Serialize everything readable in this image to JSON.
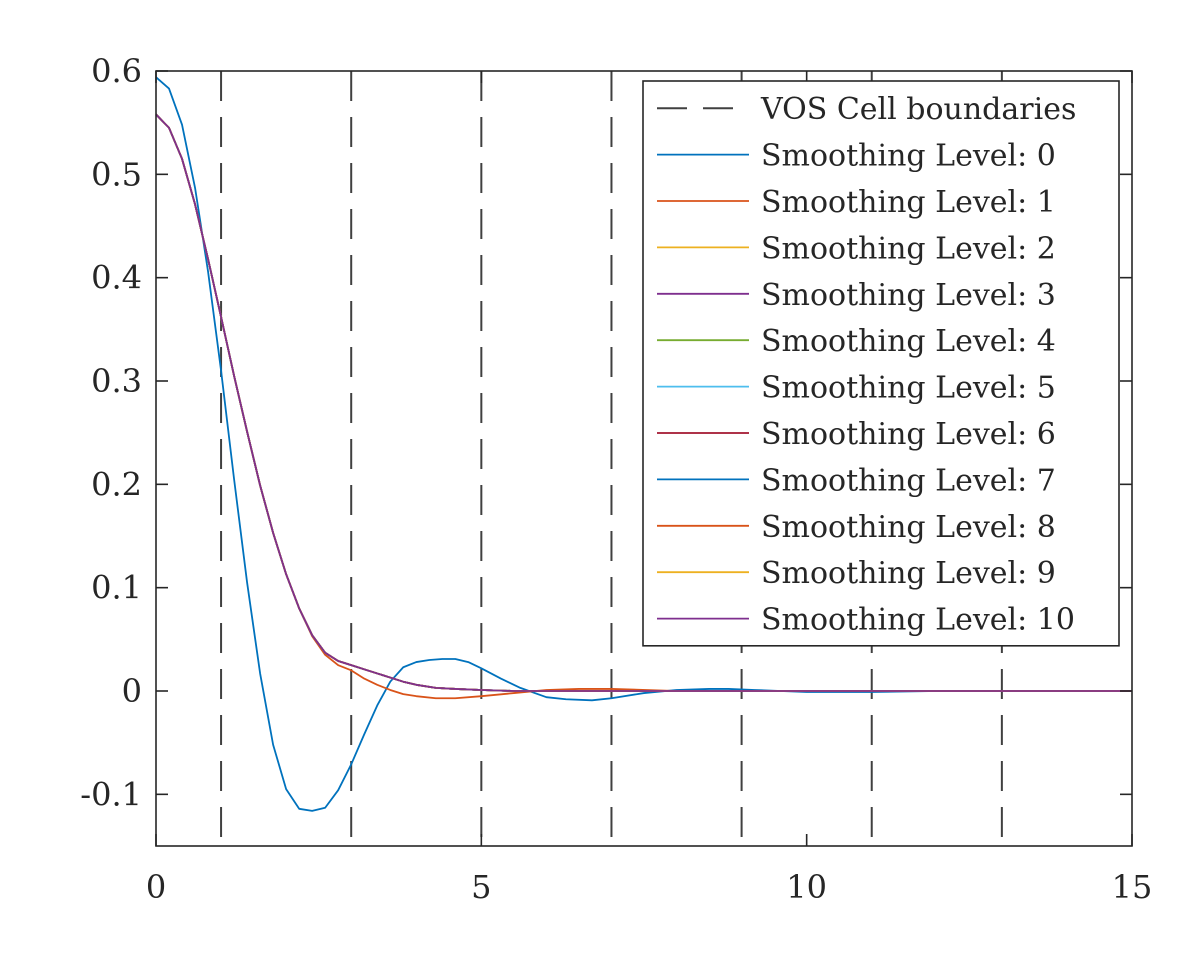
{
  "chart_data": {
    "type": "line",
    "title": "",
    "xlabel": "",
    "ylabel": "",
    "xlim": [
      0,
      15
    ],
    "ylim": [
      -0.15,
      0.6
    ],
    "xticks": [
      0,
      5,
      10,
      15
    ],
    "xtick_labels": [
      "0",
      "5",
      "10",
      "15"
    ],
    "yticks": [
      -0.1,
      0,
      0.1,
      0.2,
      0.3,
      0.4,
      0.5,
      0.6
    ],
    "ytick_labels": [
      "-0.1",
      "0",
      "0.1",
      "0.2",
      "0.3",
      "0.4",
      "0.5",
      "0.6"
    ],
    "grid": false,
    "legend_position": "top-right",
    "vertical_lines": {
      "name": "VOS Cell boundaries",
      "style": "dashed",
      "color": "#404040",
      "x": [
        1,
        3,
        5,
        7,
        9,
        11,
        13
      ]
    },
    "series": [
      {
        "name": "Smoothing Level: 0",
        "color": "#0072BD",
        "x": [
          0,
          0.2,
          0.4,
          0.6,
          0.8,
          1.0,
          1.2,
          1.4,
          1.6,
          1.8,
          2.0,
          2.2,
          2.4,
          2.6,
          2.8,
          3.0,
          3.2,
          3.4,
          3.6,
          3.8,
          4.0,
          4.2,
          4.4,
          4.6,
          4.8,
          5.0,
          5.3,
          5.6,
          6.0,
          6.3,
          6.7,
          7.0,
          7.5,
          8.0,
          8.5,
          8.8,
          9.2,
          9.6,
          10.0,
          11.0,
          12.0,
          13.0,
          14.0,
          15.0
        ],
        "y": [
          0.594,
          0.583,
          0.548,
          0.487,
          0.406,
          0.31,
          0.205,
          0.105,
          0.017,
          -0.052,
          -0.095,
          -0.114,
          -0.116,
          -0.113,
          -0.096,
          -0.071,
          -0.042,
          -0.014,
          0.009,
          0.023,
          0.028,
          0.03,
          0.031,
          0.031,
          0.028,
          0.022,
          0.012,
          0.003,
          -0.006,
          -0.008,
          -0.009,
          -0.007,
          -0.002,
          0.001,
          0.002,
          0.002,
          0.001,
          0.0,
          -0.001,
          -0.001,
          0.0,
          0.0,
          0.0,
          0.0
        ]
      },
      {
        "name": "Smoothing Level: 1",
        "color": "#D95319",
        "x": [
          0,
          0.2,
          0.4,
          0.6,
          0.8,
          1.0,
          1.2,
          1.4,
          1.6,
          1.8,
          2.0,
          2.2,
          2.4,
          2.6,
          2.8,
          3.0,
          3.2,
          3.4,
          3.6,
          3.8,
          4.0,
          4.3,
          4.6,
          5.0,
          5.5,
          6.0,
          6.5,
          7.0,
          8.0,
          9.0,
          10.0,
          12.0,
          15.0
        ],
        "y": [
          0.558,
          0.545,
          0.515,
          0.471,
          0.418,
          0.362,
          0.305,
          0.251,
          0.199,
          0.153,
          0.113,
          0.08,
          0.053,
          0.035,
          0.025,
          0.02,
          0.012,
          0.006,
          0.001,
          -0.003,
          -0.005,
          -0.007,
          -0.007,
          -0.005,
          -0.002,
          0.001,
          0.002,
          0.002,
          0.0,
          0.0,
          0.0,
          0.0,
          0.0
        ]
      },
      {
        "name": "Smoothing Level: 2",
        "color": "#EDB120",
        "x": [
          0,
          0.2,
          0.4,
          0.6,
          0.8,
          1.0,
          1.2,
          1.4,
          1.6,
          1.8,
          2.0,
          2.2,
          2.4,
          2.6,
          2.8,
          3.0,
          3.2,
          3.4,
          3.6,
          3.8,
          4.0,
          4.3,
          4.6,
          5.0,
          5.5,
          6.0,
          7.0,
          8.0,
          10.0,
          12.0,
          15.0
        ],
        "y": [
          0.558,
          0.545,
          0.515,
          0.471,
          0.418,
          0.362,
          0.305,
          0.251,
          0.199,
          0.153,
          0.113,
          0.08,
          0.054,
          0.037,
          0.029,
          0.025,
          0.021,
          0.017,
          0.013,
          0.009,
          0.006,
          0.003,
          0.002,
          0.001,
          0.0,
          0.0,
          0.0,
          0.0,
          0.0,
          0.0,
          0.0
        ]
      },
      {
        "name": "Smoothing Level: 3",
        "color": "#7E2F8E",
        "x": [
          0,
          0.2,
          0.4,
          0.6,
          0.8,
          1.0,
          1.2,
          1.4,
          1.6,
          1.8,
          2.0,
          2.2,
          2.4,
          2.6,
          2.8,
          3.0,
          3.2,
          3.4,
          3.6,
          3.8,
          4.0,
          4.3,
          4.6,
          5.0,
          5.5,
          6.0,
          7.0,
          8.0,
          10.0,
          12.0,
          15.0
        ],
        "y": [
          0.558,
          0.545,
          0.515,
          0.471,
          0.418,
          0.362,
          0.305,
          0.251,
          0.199,
          0.153,
          0.113,
          0.08,
          0.054,
          0.037,
          0.029,
          0.025,
          0.021,
          0.017,
          0.013,
          0.009,
          0.006,
          0.003,
          0.002,
          0.001,
          0.0,
          0.0,
          0.0,
          0.0,
          0.0,
          0.0,
          0.0
        ]
      },
      {
        "name": "Smoothing Level: 4",
        "color": "#77AC30",
        "x": [
          0,
          0.2,
          0.4,
          0.6,
          0.8,
          1.0,
          1.2,
          1.4,
          1.6,
          1.8,
          2.0,
          2.2,
          2.4,
          2.6,
          2.8,
          3.0,
          3.2,
          3.4,
          3.6,
          3.8,
          4.0,
          4.3,
          4.6,
          5.0,
          5.5,
          6.0,
          7.0,
          8.0,
          10.0,
          12.0,
          15.0
        ],
        "y": [
          0.558,
          0.545,
          0.515,
          0.471,
          0.418,
          0.362,
          0.305,
          0.251,
          0.199,
          0.153,
          0.113,
          0.08,
          0.054,
          0.037,
          0.029,
          0.025,
          0.021,
          0.017,
          0.013,
          0.009,
          0.006,
          0.003,
          0.002,
          0.001,
          0.0,
          0.0,
          0.0,
          0.0,
          0.0,
          0.0,
          0.0
        ]
      },
      {
        "name": "Smoothing Level: 5",
        "color": "#4DBEEE",
        "x": [
          0,
          0.2,
          0.4,
          0.6,
          0.8,
          1.0,
          1.2,
          1.4,
          1.6,
          1.8,
          2.0,
          2.2,
          2.4,
          2.6,
          2.8,
          3.0,
          3.2,
          3.4,
          3.6,
          3.8,
          4.0,
          4.3,
          4.6,
          5.0,
          5.5,
          6.0,
          7.0,
          8.0,
          10.0,
          12.0,
          15.0
        ],
        "y": [
          0.558,
          0.545,
          0.515,
          0.471,
          0.418,
          0.362,
          0.305,
          0.251,
          0.199,
          0.153,
          0.113,
          0.08,
          0.054,
          0.037,
          0.029,
          0.025,
          0.021,
          0.017,
          0.013,
          0.009,
          0.006,
          0.003,
          0.002,
          0.001,
          0.0,
          0.0,
          0.0,
          0.0,
          0.0,
          0.0,
          0.0
        ]
      },
      {
        "name": "Smoothing Level: 6",
        "color": "#A2142F",
        "x": [
          0,
          0.2,
          0.4,
          0.6,
          0.8,
          1.0,
          1.2,
          1.4,
          1.6,
          1.8,
          2.0,
          2.2,
          2.4,
          2.6,
          2.8,
          3.0,
          3.2,
          3.4,
          3.6,
          3.8,
          4.0,
          4.3,
          4.6,
          5.0,
          5.5,
          6.0,
          7.0,
          8.0,
          10.0,
          12.0,
          15.0
        ],
        "y": [
          0.558,
          0.545,
          0.515,
          0.471,
          0.418,
          0.362,
          0.305,
          0.251,
          0.199,
          0.153,
          0.113,
          0.08,
          0.054,
          0.037,
          0.029,
          0.025,
          0.021,
          0.017,
          0.013,
          0.009,
          0.006,
          0.003,
          0.002,
          0.001,
          0.0,
          0.0,
          0.0,
          0.0,
          0.0,
          0.0,
          0.0
        ]
      },
      {
        "name": "Smoothing Level: 7",
        "color": "#0072BD",
        "x": [
          0,
          0.2,
          0.4,
          0.6,
          0.8,
          1.0,
          1.2,
          1.4,
          1.6,
          1.8,
          2.0,
          2.2,
          2.4,
          2.6,
          2.8,
          3.0,
          3.2,
          3.4,
          3.6,
          3.8,
          4.0,
          4.3,
          4.6,
          5.0,
          5.5,
          6.0,
          7.0,
          8.0,
          10.0,
          12.0,
          15.0
        ],
        "y": [
          0.558,
          0.545,
          0.515,
          0.471,
          0.418,
          0.362,
          0.305,
          0.251,
          0.199,
          0.153,
          0.113,
          0.08,
          0.054,
          0.037,
          0.029,
          0.025,
          0.021,
          0.017,
          0.013,
          0.009,
          0.006,
          0.003,
          0.002,
          0.001,
          0.0,
          0.0,
          0.0,
          0.0,
          0.0,
          0.0,
          0.0
        ]
      },
      {
        "name": "Smoothing Level: 8",
        "color": "#D95319",
        "x": [
          0,
          0.2,
          0.4,
          0.6,
          0.8,
          1.0,
          1.2,
          1.4,
          1.6,
          1.8,
          2.0,
          2.2,
          2.4,
          2.6,
          2.8,
          3.0,
          3.2,
          3.4,
          3.6,
          3.8,
          4.0,
          4.3,
          4.6,
          5.0,
          5.5,
          6.0,
          7.0,
          8.0,
          10.0,
          12.0,
          15.0
        ],
        "y": [
          0.558,
          0.545,
          0.515,
          0.471,
          0.418,
          0.362,
          0.305,
          0.251,
          0.199,
          0.153,
          0.113,
          0.08,
          0.054,
          0.037,
          0.029,
          0.025,
          0.021,
          0.017,
          0.013,
          0.009,
          0.006,
          0.003,
          0.002,
          0.001,
          0.0,
          0.0,
          0.0,
          0.0,
          0.0,
          0.0,
          0.0
        ]
      },
      {
        "name": "Smoothing Level: 9",
        "color": "#EDB120",
        "x": [
          0,
          0.2,
          0.4,
          0.6,
          0.8,
          1.0,
          1.2,
          1.4,
          1.6,
          1.8,
          2.0,
          2.2,
          2.4,
          2.6,
          2.8,
          3.0,
          3.2,
          3.4,
          3.6,
          3.8,
          4.0,
          4.3,
          4.6,
          5.0,
          5.5,
          6.0,
          7.0,
          8.0,
          10.0,
          12.0,
          15.0
        ],
        "y": [
          0.558,
          0.545,
          0.515,
          0.471,
          0.418,
          0.362,
          0.305,
          0.251,
          0.199,
          0.153,
          0.113,
          0.08,
          0.054,
          0.037,
          0.029,
          0.025,
          0.021,
          0.017,
          0.013,
          0.009,
          0.006,
          0.003,
          0.002,
          0.001,
          0.0,
          0.0,
          0.0,
          0.0,
          0.0,
          0.0,
          0.0
        ]
      },
      {
        "name": "Smoothing Level: 10",
        "color": "#7E2F8E",
        "x": [
          0,
          0.2,
          0.4,
          0.6,
          0.8,
          1.0,
          1.2,
          1.4,
          1.6,
          1.8,
          2.0,
          2.2,
          2.4,
          2.6,
          2.8,
          3.0,
          3.2,
          3.4,
          3.6,
          3.8,
          4.0,
          4.3,
          4.6,
          5.0,
          5.5,
          6.0,
          7.0,
          8.0,
          10.0,
          12.0,
          15.0
        ],
        "y": [
          0.558,
          0.545,
          0.515,
          0.471,
          0.418,
          0.362,
          0.305,
          0.251,
          0.199,
          0.153,
          0.113,
          0.08,
          0.054,
          0.037,
          0.029,
          0.025,
          0.021,
          0.017,
          0.013,
          0.009,
          0.006,
          0.003,
          0.002,
          0.001,
          0.0,
          0.0,
          0.0,
          0.0,
          0.0,
          0.0,
          0.0
        ]
      }
    ]
  }
}
